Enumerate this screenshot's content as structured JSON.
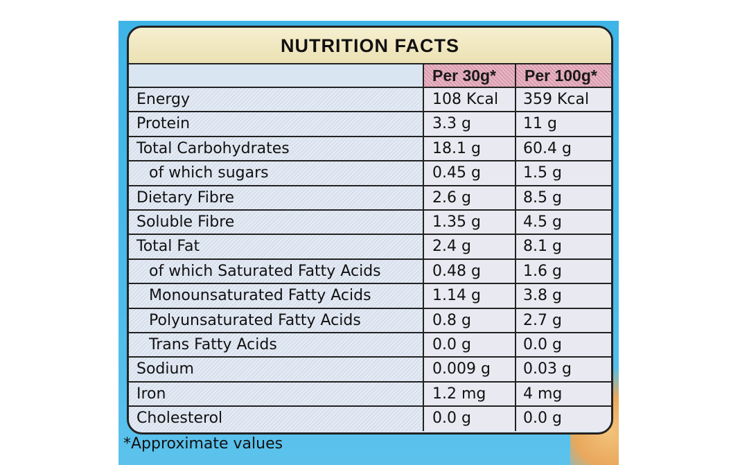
{
  "title": "NUTRITION FACTS",
  "columns": [
    "Per 30g*",
    "Per 100g*"
  ],
  "rows": [
    {
      "name": "Energy",
      "per30": "108 Kcal",
      "per100": "359 Kcal",
      "indent": false
    },
    {
      "name": "Protein",
      "per30": "3.3 g",
      "per100": "11 g",
      "indent": false
    },
    {
      "name": "Total Carbohydrates",
      "per30": "18.1 g",
      "per100": "60.4 g",
      "indent": false
    },
    {
      "name": "of which sugars",
      "per30": "0.45 g",
      "per100": "1.5 g",
      "indent": true
    },
    {
      "name": "Dietary Fibre",
      "per30": "2.6 g",
      "per100": "8.5 g",
      "indent": false
    },
    {
      "name": "Soluble Fibre",
      "per30": "1.35 g",
      "per100": "4.5 g",
      "indent": false
    },
    {
      "name": "Total Fat",
      "per30": "2.4 g",
      "per100": "8.1 g",
      "indent": false
    },
    {
      "name": "of which Saturated Fatty Acids",
      "per30": "0.48 g",
      "per100": "1.6 g",
      "indent": true
    },
    {
      "name": "Monounsaturated Fatty Acids",
      "per30": "1.14 g",
      "per100": "3.8 g",
      "indent": true
    },
    {
      "name": "Polyunsaturated Fatty Acids",
      "per30": "0.8 g",
      "per100": "2.7 g",
      "indent": true
    },
    {
      "name": "Trans Fatty Acids",
      "per30": "0.0 g",
      "per100": "0.0 g",
      "indent": true
    },
    {
      "name": "Sodium",
      "per30": "0.009 g",
      "per100": "0.03 g",
      "indent": false
    },
    {
      "name": "Iron",
      "per30": "1.2 mg",
      "per100": "4 mg",
      "indent": false
    },
    {
      "name": "Cholesterol",
      "per30": "0.0 g",
      "per100": "0.0 g",
      "indent": false
    }
  ],
  "footnote": "*Approximate values"
}
